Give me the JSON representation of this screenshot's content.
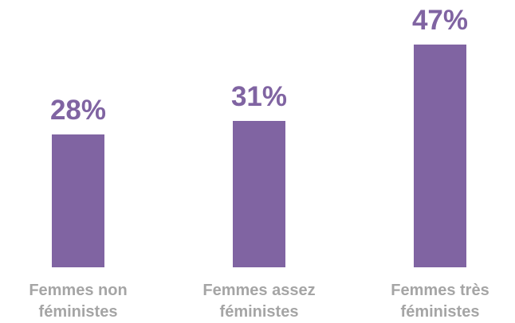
{
  "chart_data": {
    "type": "bar",
    "categories": [
      "Femmes non féministes",
      "Femmes assez féministes",
      "Femmes très féministes"
    ],
    "values": [
      28,
      31,
      47
    ],
    "value_labels": [
      "28%",
      "31%",
      "47%"
    ],
    "color": "#8064a2"
  }
}
